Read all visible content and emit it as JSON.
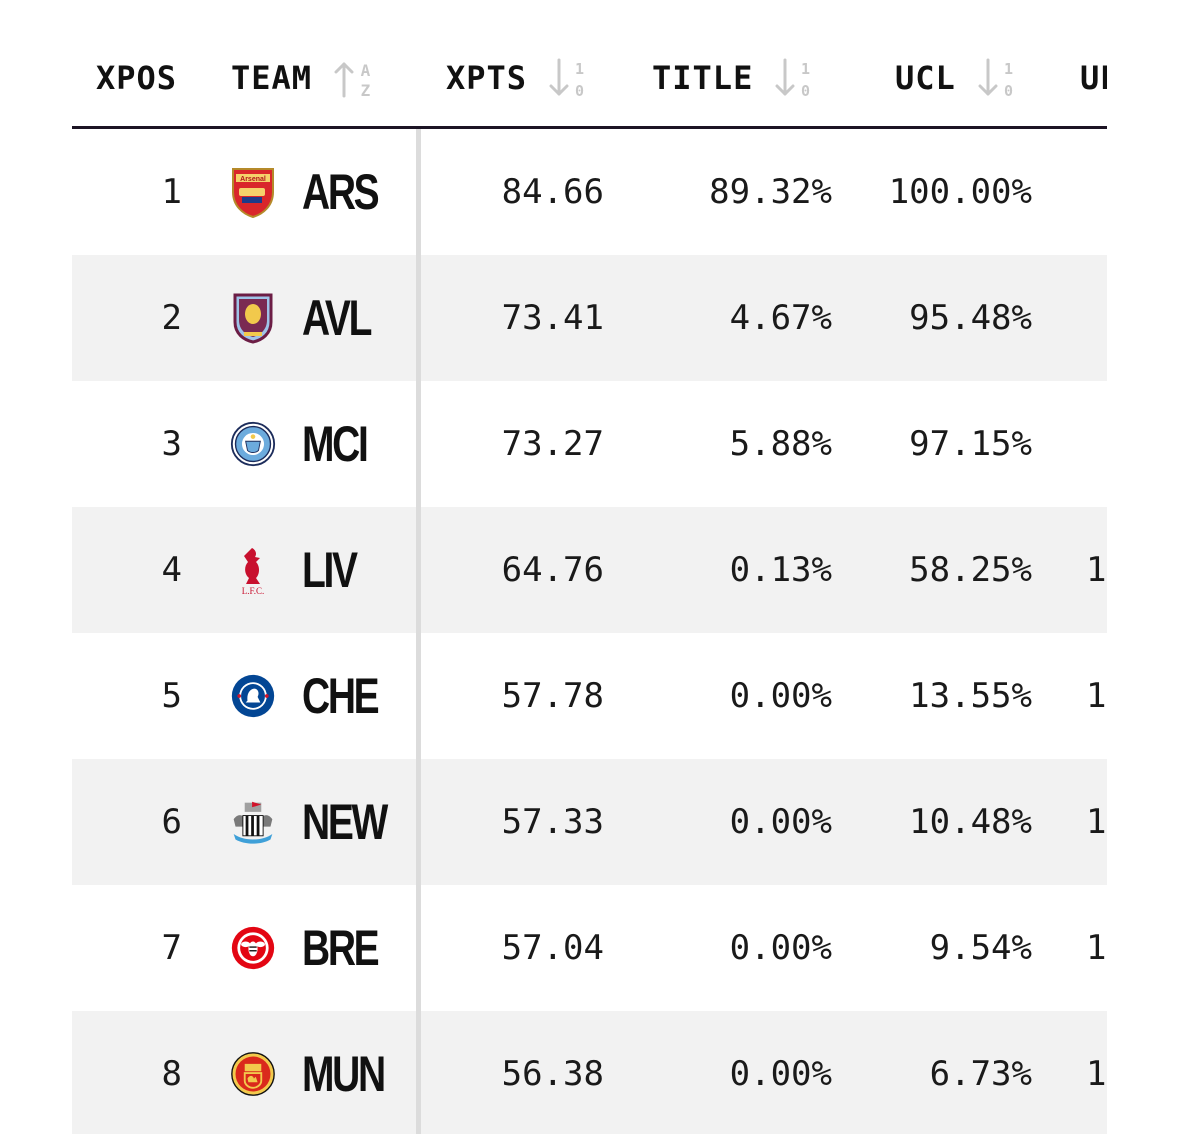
{
  "columns": {
    "xpos": "XPOS",
    "team": "TEAM",
    "xpts": "XPTS",
    "title": "TITLE",
    "ucl": "UCL",
    "next": "UEL"
  },
  "sort_icons": {
    "team": "sort-alpha-ascending-icon",
    "xpts": "sort-numeric-descending-icon",
    "title": "sort-numeric-descending-icon",
    "ucl": "sort-numeric-descending-icon"
  },
  "colors": {
    "header_rule": "#1c1424",
    "alt_row": "#f2f2f2",
    "divider": "#dcdcdc",
    "sort_icon": "#c8c8c8"
  },
  "rows": [
    {
      "pos": "1",
      "team": "ARS",
      "crest": "arsenal-crest-icon",
      "xpts": "84.66",
      "title": "89.32%",
      "ucl": "100.00%",
      "extra": ""
    },
    {
      "pos": "2",
      "team": "AVL",
      "crest": "aston-villa-crest-icon",
      "xpts": "73.41",
      "title": "4.67%",
      "ucl": "95.48%",
      "extra": ""
    },
    {
      "pos": "3",
      "team": "MCI",
      "crest": "man-city-crest-icon",
      "xpts": "73.27",
      "title": "5.88%",
      "ucl": "97.15%",
      "extra": ""
    },
    {
      "pos": "4",
      "team": "LIV",
      "crest": "liverpool-crest-icon",
      "xpts": "64.76",
      "title": "0.13%",
      "ucl": "58.25%",
      "extra": "1"
    },
    {
      "pos": "5",
      "team": "CHE",
      "crest": "chelsea-crest-icon",
      "xpts": "57.78",
      "title": "0.00%",
      "ucl": "13.55%",
      "extra": "1"
    },
    {
      "pos": "6",
      "team": "NEW",
      "crest": "newcastle-crest-icon",
      "xpts": "57.33",
      "title": "0.00%",
      "ucl": "10.48%",
      "extra": "1"
    },
    {
      "pos": "7",
      "team": "BRE",
      "crest": "brentford-crest-icon",
      "xpts": "57.04",
      "title": "0.00%",
      "ucl": "9.54%",
      "extra": "1"
    },
    {
      "pos": "8",
      "team": "MUN",
      "crest": "man-united-crest-icon",
      "xpts": "56.38",
      "title": "0.00%",
      "ucl": "6.73%",
      "extra": "1"
    }
  ]
}
